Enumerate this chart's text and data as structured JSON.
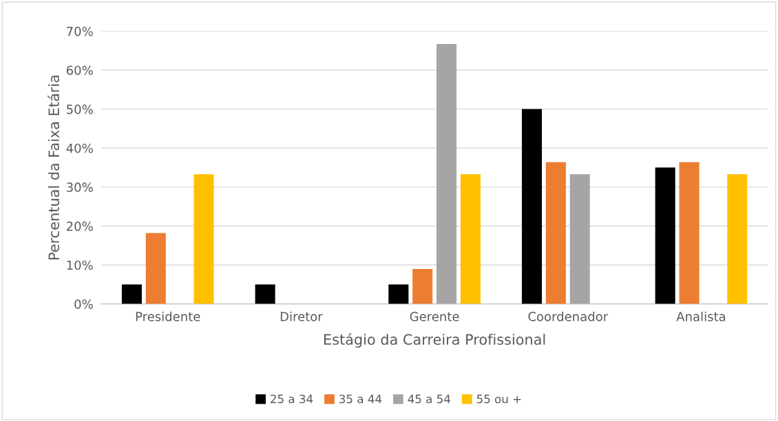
{
  "chart_data": {
    "type": "bar",
    "xlabel": "Estágio da Carreira Profissional",
    "ylabel": "Percentual da Faixa Etária",
    "categories": [
      "Presidente",
      "Diretor",
      "Gerente",
      "Coordenador",
      "Analista"
    ],
    "series": [
      {
        "name": "25 a 34",
        "color": "#000000",
        "values": [
          5,
          5,
          5,
          50,
          35
        ]
      },
      {
        "name": "35 a 44",
        "color": "#ed7d31",
        "values": [
          18.2,
          0,
          9,
          36.4,
          36.4
        ]
      },
      {
        "name": "45 a 54",
        "color": "#a5a5a5",
        "values": [
          0,
          0,
          66.7,
          33.3,
          0
        ]
      },
      {
        "name": "55 ou +",
        "color": "#ffc000",
        "values": [
          33.3,
          0,
          33.3,
          0,
          33.3
        ]
      }
    ],
    "ylim": [
      0,
      70
    ],
    "yticks": [
      {
        "value": 0,
        "label": "0%"
      },
      {
        "value": 10,
        "label": "10%"
      },
      {
        "value": 20,
        "label": "20%"
      },
      {
        "value": 30,
        "label": "30%"
      },
      {
        "value": 40,
        "label": "40%"
      },
      {
        "value": 50,
        "label": "50%"
      },
      {
        "value": 60,
        "label": "60%"
      },
      {
        "value": 70,
        "label": "70%"
      }
    ],
    "grid": "y",
    "legend": "bottom"
  }
}
